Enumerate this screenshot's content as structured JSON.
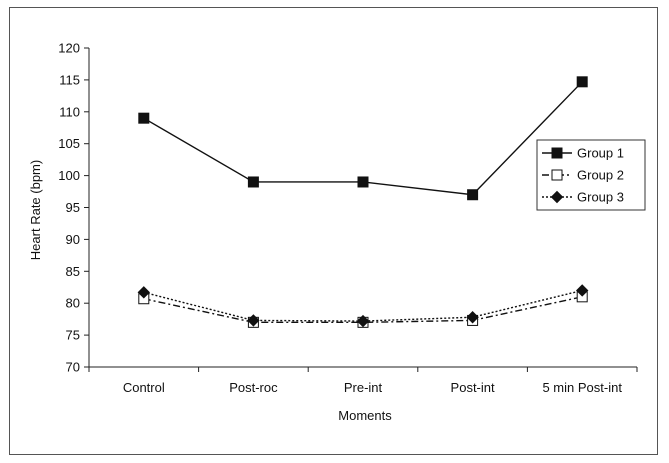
{
  "chart_data": {
    "type": "line",
    "title": "",
    "xlabel": "Moments",
    "ylabel": "Heart Rate (bpm)",
    "categories": [
      "Control",
      "Post-roc",
      "Pre-int",
      "Post-int",
      "5 min Post-int"
    ],
    "ylim": [
      70,
      120
    ],
    "yticks": [
      "70",
      "75",
      "80",
      "85",
      "90",
      "95",
      "100",
      "105",
      "110",
      "115",
      "120"
    ],
    "grid": false,
    "legend_position": "right",
    "series": [
      {
        "name": "Group 1",
        "values": [
          109,
          99,
          99,
          97,
          114.7
        ],
        "marker": "square-filled",
        "line": "solid"
      },
      {
        "name": "Group 2",
        "values": [
          80.7,
          77,
          77,
          77.3,
          81
        ],
        "marker": "square-open",
        "line": "dash-dot"
      },
      {
        "name": "Group 3",
        "values": [
          81.7,
          77.3,
          77.2,
          77.8,
          82
        ],
        "marker": "diamond-filled",
        "line": "dotted"
      }
    ]
  }
}
